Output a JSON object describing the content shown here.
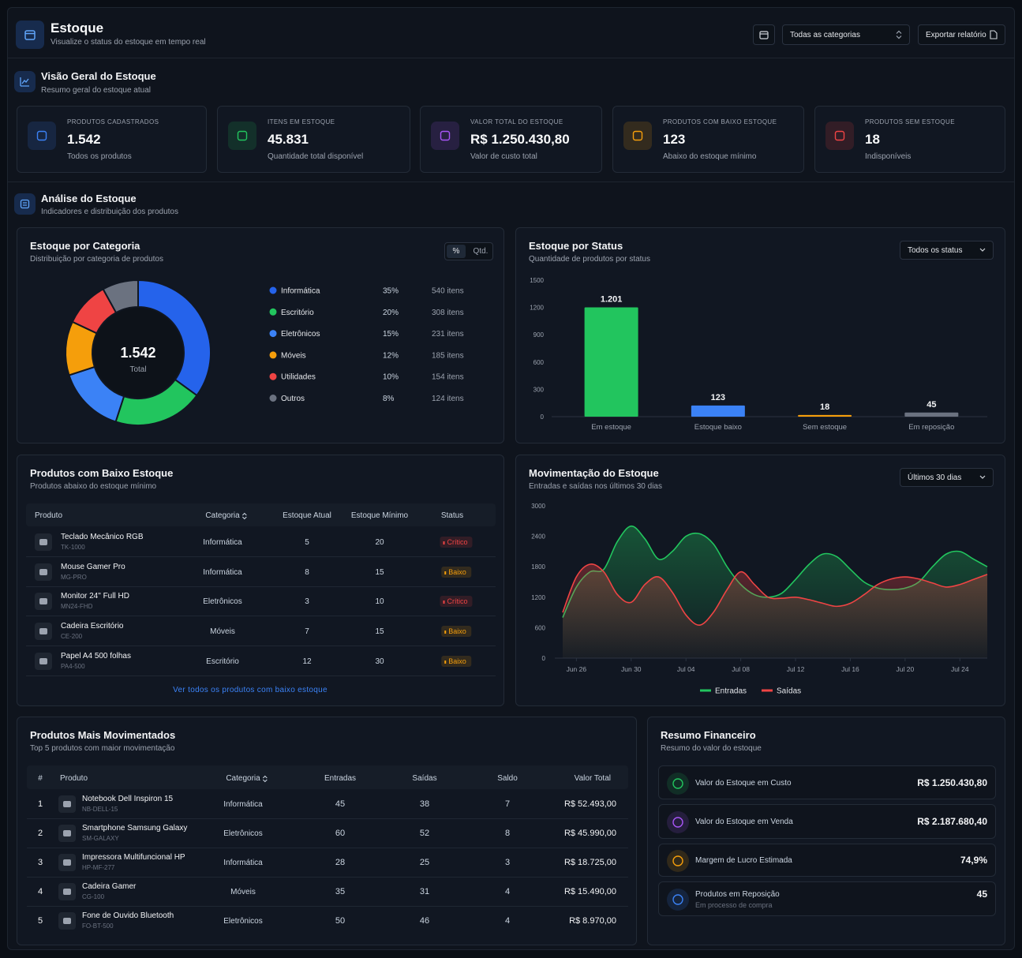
{
  "header": {
    "title": "Estoque",
    "subtitle": "Visualize o status do estoque em tempo real",
    "filter": "Todas as categorias",
    "export": "Exportar relatório"
  },
  "overview": {
    "title": "Visão Geral do Estoque",
    "subtitle": "Resumo geral do estoque atual",
    "cards": [
      {
        "label": "PRODUTOS CADASTRADOS",
        "value": "1.542",
        "note": "Todos os produtos",
        "color": "#3b82f6"
      },
      {
        "label": "ITENS EM ESTOQUE",
        "value": "45.831",
        "note": "Quantidade total disponível",
        "color": "#22c55e"
      },
      {
        "label": "VALOR TOTAL DO ESTOQUE",
        "value": "R$ 1.250.430,80",
        "note": "Valor de custo total",
        "color": "#a855f7"
      },
      {
        "label": "PRODUTOS COM BAIXO ESTOQUE",
        "value": "123",
        "note": "Abaixo do estoque mínimo",
        "color": "#f59e0b"
      },
      {
        "label": "PRODUTOS SEM ESTOQUE",
        "value": "18",
        "note": "Indisponíveis",
        "color": "#ef4444"
      }
    ]
  },
  "analysis": {
    "title": "Análise do Estoque",
    "subtitle": "Indicadores e distribuição dos produtos"
  },
  "chart_data": [
    {
      "type": "pie",
      "title": "Estoque por Categoria",
      "subtitle": "Distribuição por categoria de produtos",
      "toggle": [
        "%",
        "Qtd."
      ],
      "center_value": "1.542",
      "center_label": "Total",
      "categories": [
        "Informática",
        "Escritório",
        "Eletrônicos",
        "Móveis",
        "Utilidades",
        "Outros"
      ],
      "values": [
        35,
        20,
        15,
        12,
        10,
        8
      ],
      "value_labels": [
        "35%",
        "20%",
        "15%",
        "12%",
        "10%",
        "8%"
      ],
      "items": [
        "540 itens",
        "308 itens",
        "231 itens",
        "185 itens",
        "154 itens",
        "124 itens"
      ],
      "colors": [
        "#2563eb",
        "#22c55e",
        "#3b82f6",
        "#f59e0b",
        "#ef4444",
        "#6b7280"
      ]
    },
    {
      "type": "bar",
      "title": "Estoque por Status",
      "subtitle": "Quantidade de produtos por status",
      "dropdown": "Todos os status",
      "categories": [
        "Em estoque",
        "Estoque baixo",
        "Sem estoque",
        "Em reposição"
      ],
      "values": [
        1201,
        123,
        18,
        45
      ],
      "value_labels": [
        "1.201",
        "123",
        "18",
        "45"
      ],
      "colors": [
        "#22c55e",
        "#3b82f6",
        "#f59e0b",
        "#6b7280"
      ],
      "ylim": [
        0,
        1500
      ],
      "yticks": [
        0,
        300,
        600,
        900,
        1200,
        1500
      ],
      "grid": false
    },
    {
      "type": "area",
      "title": "Movimentação do Estoque",
      "subtitle": "Entradas e saídas nos últimos 30 dias",
      "dropdown": "Últimos 30 dias",
      "categories": [
        null,
        "Jun 26",
        null,
        null,
        null,
        "Jun 30",
        null,
        null,
        null,
        "Jul 04",
        null,
        null,
        null,
        "Jul 08",
        null,
        null,
        null,
        "Jul 12",
        null,
        null,
        null,
        "Jul 16",
        null,
        null,
        null,
        "Jul 20",
        null,
        null,
        null,
        "Jul 24",
        null,
        null
      ],
      "series": [
        {
          "name": "Entradas",
          "color": "#22c55e",
          "values": [
            800,
            1400,
            1700,
            1750,
            2300,
            2600,
            2350,
            1950,
            2100,
            2400,
            2450,
            2250,
            1800,
            1450,
            1250,
            1200,
            1280,
            1550,
            1850,
            2050,
            2000,
            1750,
            1500,
            1380,
            1350,
            1380,
            1500,
            1800,
            2050,
            2100,
            1950,
            1800
          ]
        },
        {
          "name": "Saídas",
          "color": "#ef4444",
          "values": [
            900,
            1600,
            1850,
            1700,
            1250,
            1100,
            1450,
            1600,
            1300,
            850,
            650,
            900,
            1350,
            1700,
            1450,
            1200,
            1180,
            1200,
            1150,
            1080,
            1020,
            1080,
            1250,
            1450,
            1560,
            1600,
            1560,
            1480,
            1400,
            1450,
            1550,
            1650
          ]
        }
      ],
      "ylim": [
        0,
        3000
      ],
      "yticks": [
        0,
        600,
        1200,
        1800,
        2400,
        3000
      ],
      "legend": "bottom"
    }
  ],
  "low_stock": {
    "title": "Produtos com Baixo Estoque",
    "subtitle": "Produtos abaixo do estoque mínimo",
    "columns": [
      "Produto",
      "Categoria",
      "Estoque Atual",
      "Estoque Mínimo",
      "Status"
    ],
    "rows": [
      {
        "name": "Teclado Mecânico RGB",
        "sku": "TK-1000",
        "category": "Informática",
        "current": 5,
        "minimum": 20,
        "status": "Crítico",
        "status_color": "#ef4444"
      },
      {
        "name": "Mouse Gamer Pro",
        "sku": "MG-PRO",
        "category": "Informática",
        "current": 8,
        "minimum": 15,
        "status": "Baixo",
        "status_color": "#f59e0b"
      },
      {
        "name": "Monitor 24\" Full HD",
        "sku": "MN24-FHD",
        "category": "Eletrônicos",
        "current": 3,
        "minimum": 10,
        "status": "Crítico",
        "status_color": "#ef4444"
      },
      {
        "name": "Cadeira Escritório",
        "sku": "CE-200",
        "category": "Móveis",
        "current": 7,
        "minimum": 15,
        "status": "Baixo",
        "status_color": "#f59e0b"
      },
      {
        "name": "Papel A4 500 folhas",
        "sku": "PA4-500",
        "category": "Escritório",
        "current": 12,
        "minimum": 30,
        "status": "Baixo",
        "status_color": "#f59e0b"
      }
    ],
    "link": "Ver todos os produtos com baixo estoque"
  },
  "top_moved": {
    "title": "Produtos Mais Movimentados",
    "subtitle": "Top 5 produtos com maior movimentação",
    "columns": [
      "#",
      "Produto",
      "Categoria",
      "Entradas",
      "Saídas",
      "Saldo",
      "Valor Total"
    ],
    "rows": [
      {
        "rank": 1,
        "name": "Notebook Dell Inspiron 15",
        "sku": "NB-DELL-15",
        "category": "Informática",
        "in": 45,
        "out": 38,
        "balance": 7,
        "total": "R$ 52.493,00"
      },
      {
        "rank": 2,
        "name": "Smartphone Samsung Galaxy",
        "sku": "SM-GALAXY",
        "category": "Eletrônicos",
        "in": 60,
        "out": 52,
        "balance": 8,
        "total": "R$ 45.990,00"
      },
      {
        "rank": 3,
        "name": "Impressora Multifuncional HP",
        "sku": "HP-MF-277",
        "category": "Informática",
        "in": 28,
        "out": 25,
        "balance": 3,
        "total": "R$ 18.725,00"
      },
      {
        "rank": 4,
        "name": "Cadeira Gamer",
        "sku": "CG-100",
        "category": "Móveis",
        "in": 35,
        "out": 31,
        "balance": 4,
        "total": "R$ 15.490,00"
      },
      {
        "rank": 5,
        "name": "Fone de Ouvido Bluetooth",
        "sku": "FO-BT-500",
        "category": "Eletrônicos",
        "in": 50,
        "out": 46,
        "balance": 4,
        "total": "R$ 8.970,00"
      }
    ]
  },
  "financial": {
    "title": "Resumo Financeiro",
    "subtitle": "Resumo do valor do estoque",
    "items": [
      {
        "label": "Valor do Estoque em Custo",
        "value": "R$ 1.250.430,80",
        "color": "#22c55e"
      },
      {
        "label": "Valor do Estoque em Venda",
        "value": "R$ 2.187.680,40",
        "color": "#a855f7"
      },
      {
        "label": "Margem de Lucro Estimada",
        "value": "74,9%",
        "color": "#f59e0b"
      },
      {
        "label": "Produtos em Reposição",
        "note": "Em processo de compra",
        "value": "45",
        "color": "#3b82f6"
      }
    ]
  }
}
